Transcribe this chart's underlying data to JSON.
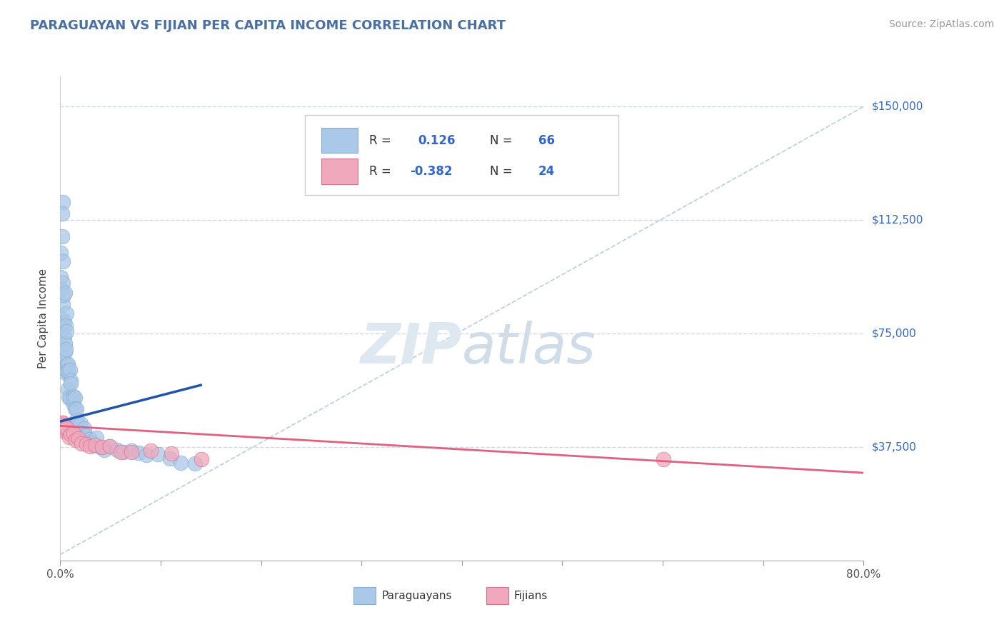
{
  "title": "PARAGUAYAN VS FIJIAN PER CAPITA INCOME CORRELATION CHART",
  "source_text": "Source: ZipAtlas.com",
  "ylabel": "Per Capita Income",
  "xlim": [
    0.0,
    0.8
  ],
  "ylim": [
    0,
    160000
  ],
  "yticks": [
    37500,
    75000,
    112500,
    150000
  ],
  "ytick_labels": [
    "$37,500",
    "$75,000",
    "$112,500",
    "$150,000"
  ],
  "xtick_positions": [
    0.0,
    0.1,
    0.2,
    0.3,
    0.4,
    0.5,
    0.6,
    0.7,
    0.8
  ],
  "xtick_labels_shown": [
    "0.0%",
    "",
    "",
    "",
    "",
    "",
    "",
    "",
    "80.0%"
  ],
  "bg_color": "#ffffff",
  "grid_color": "#c8d4e8",
  "title_color": "#4a6fa5",
  "ylabel_color": "#444444",
  "source_color": "#999999",
  "paraguayan_color": "#aac8e8",
  "fijian_color": "#f0a8bc",
  "paraguayan_edge": "#88aacc",
  "fijian_edge": "#d87090",
  "trend_paraguayan_color": "#2255aa",
  "trend_fijian_color": "#e06080",
  "diagonal_color": "#b0c8e0",
  "legend_color": "#3366cc",
  "watermark_color": "#dde8f0",
  "R_paraguayan": 0.126,
  "N_paraguayan": 66,
  "R_fijian": -0.382,
  "N_fijian": 24,
  "paraguayan_x": [
    0.001,
    0.001,
    0.001,
    0.001,
    0.001,
    0.002,
    0.002,
    0.002,
    0.002,
    0.002,
    0.002,
    0.003,
    0.003,
    0.003,
    0.003,
    0.003,
    0.004,
    0.004,
    0.004,
    0.004,
    0.005,
    0.005,
    0.005,
    0.005,
    0.006,
    0.006,
    0.006,
    0.007,
    0.007,
    0.008,
    0.008,
    0.009,
    0.009,
    0.01,
    0.01,
    0.011,
    0.011,
    0.012,
    0.012,
    0.013,
    0.014,
    0.015,
    0.016,
    0.017,
    0.018,
    0.019,
    0.02,
    0.022,
    0.024,
    0.026,
    0.028,
    0.03,
    0.033,
    0.036,
    0.04,
    0.044,
    0.05,
    0.056,
    0.063,
    0.07,
    0.078,
    0.087,
    0.097,
    0.108,
    0.12,
    0.135
  ],
  "paraguayan_y": [
    120000,
    95000,
    90000,
    78000,
    62000,
    115000,
    107000,
    100000,
    90000,
    85000,
    78000,
    98000,
    88000,
    82000,
    76000,
    70000,
    88000,
    80000,
    74000,
    68000,
    82000,
    76000,
    70000,
    64000,
    75000,
    68000,
    62000,
    70000,
    63000,
    65000,
    60000,
    62000,
    57000,
    60000,
    55000,
    58000,
    53000,
    56000,
    51000,
    54000,
    52000,
    50000,
    48000,
    47000,
    46000,
    45000,
    44000,
    43000,
    42000,
    41000,
    40000,
    39500,
    39000,
    38500,
    38000,
    37500,
    37000,
    36500,
    36000,
    35500,
    35000,
    34500,
    34000,
    33500,
    33000,
    32500
  ],
  "fijian_x": [
    0.001,
    0.002,
    0.003,
    0.004,
    0.005,
    0.006,
    0.007,
    0.009,
    0.011,
    0.013,
    0.016,
    0.019,
    0.022,
    0.026,
    0.03,
    0.035,
    0.042,
    0.05,
    0.06,
    0.072,
    0.09,
    0.11,
    0.14,
    0.6
  ],
  "fijian_y": [
    46000,
    45000,
    44500,
    44000,
    43500,
    43000,
    42500,
    42000,
    41500,
    41000,
    40500,
    40000,
    39500,
    39000,
    38500,
    38000,
    37500,
    37000,
    36500,
    36000,
    35500,
    35000,
    34500,
    33000
  ],
  "p_trend_x0": 0.0,
  "p_trend_x1": 0.14,
  "p_trend_y0": 46000,
  "p_trend_y1": 58000,
  "f_trend_x0": 0.0,
  "f_trend_x1": 0.8,
  "f_trend_y0": 44500,
  "f_trend_y1": 29000
}
